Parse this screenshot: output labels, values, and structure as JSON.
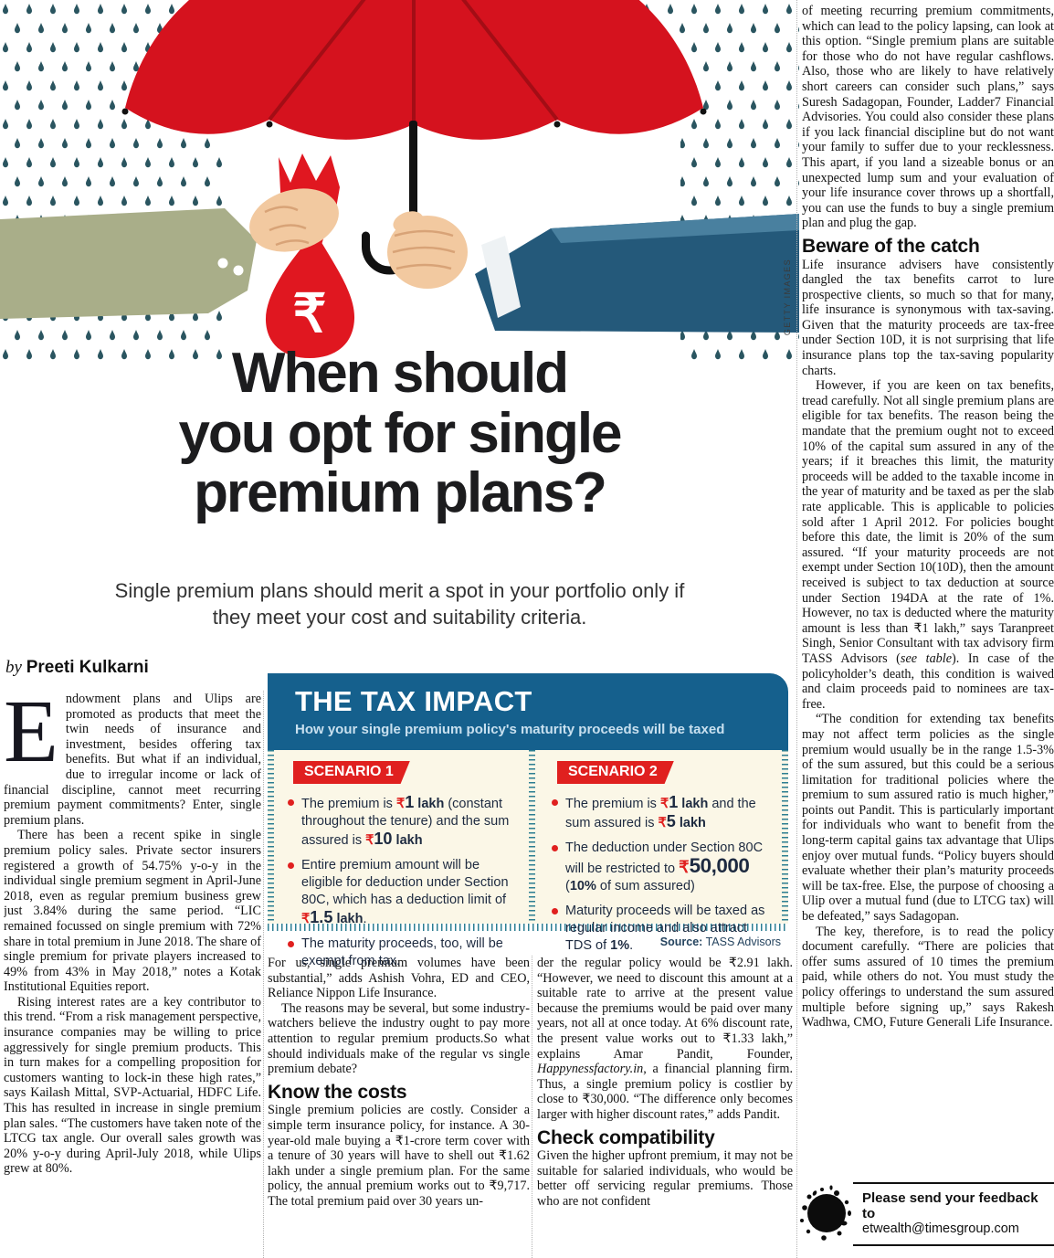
{
  "headline": {
    "lines": [
      "When should",
      "you opt for single",
      "premium plans?"
    ],
    "deck_lines": [
      "Single premium plans should merit a spot in your portfolio only if",
      "they meet your cost and suitability criteria."
    ]
  },
  "byline": {
    "prefix": "by",
    "author": "Preeti Kulkarni"
  },
  "illustration": {
    "credit": "GETTY IMAGES"
  },
  "columns": {
    "left": [
      {
        "t": "drop",
        "x": "Endowment plans and Ulips are promoted as products that meet the twin needs of insurance and investment, besides offering tax benefits. But what if an individual, due to irregular income or lack of financial discipline, cannot meet recurring premium payment commitments? Enter, single premium plans."
      },
      {
        "t": "ind",
        "x": "There has been a recent spike in single premium policy sales. Private sector insurers registered a growth of 54.75% y-o-y in the individual single premium segment in April-June 2018, even as regular premium business grew just 3.84% during the same period. “LIC remained focussed on single premium with 72% share in total premium in June 2018. The share of single premium for private players increased to 49% from 43% in May 2018,” notes a Kotak Institutional Equities report."
      },
      {
        "t": "ind",
        "x": "Rising interest rates are a key contributor to this trend. “From a risk management perspective, insurance companies may be willing to price aggressively for single premium products. This in turn makes for a compelling proposition for customers wanting to lock-in these high rates,” says Kailash Mittal, SVP-Actuarial, HDFC Life. This has resulted in increase in single premium plan sales. “The customers have taken note of the LTCG tax angle. Our overall sales growth was 20% y-o-y during April-July 2018, while Ulips grew at 80%."
      }
    ],
    "mid1": [
      {
        "t": "p",
        "x": "For us, single premium volumes have been substantial,” adds Ashish Vohra, ED and CEO, Reliance Nippon Life Insurance."
      },
      {
        "t": "ind",
        "x": "The reasons may be several, but some industry-watchers believe the industry ought to pay more attention to regular premium products.So what should individuals make of the regular vs single premium debate?"
      },
      {
        "t": "h2",
        "x": "Know the costs"
      },
      {
        "t": "p",
        "x": "Single premium policies are costly. Consider a simple term insurance policy, for instance. A 30-year-old male buying a ₹1-crore term cover with a tenure of 30 years will have to shell out ₹1.62 lakh under a single premium plan. For the same policy, the annual premium works out to ₹9,717. The total premium paid over 30 years un-"
      }
    ],
    "mid2": [
      {
        "t": "p",
        "x": "der the regular policy would be ₹2.91 lakh. “However, we need to discount this amount at a suitable rate to arrive at the present value because the premiums would be paid over many years, not all at once today. At 6% discount rate, the present value works out to ₹1.33 lakh,” explains Amar Pandit, Founder, _Happynessfactory.in_, a financial planning firm. Thus, a single premium policy is costlier by close to ₹30,000. “The difference only becomes larger with higher discount rates,” adds Pandit."
      },
      {
        "t": "h2",
        "x": "Check compatibility"
      },
      {
        "t": "p",
        "x": "Given the higher upfront premium, it may not be suitable for salaried individuals, who would be better off servicing regular premiums. Those who are not confident"
      }
    ],
    "right": [
      {
        "t": "p",
        "x": "of meeting recurring premium commitments, which can lead to the policy lapsing, can look at this option. “Single premium plans are suitable for those who do not have regular cashflows. Also, those who are likely to have relatively short careers can consider such plans,” says Suresh Sadagopan, Founder, Ladder7 Financial Advisories. You could also consider these plans if you lack financial discipline but do not want your family to suffer due to your recklessness. This apart, if you land a sizeable bonus or an unexpected lump sum and your evaluation of your life insurance cover throws up a shortfall, you can use the funds to buy a single premium plan and plug the gap."
      },
      {
        "t": "h2",
        "x": "Beware of the catch"
      },
      {
        "t": "p",
        "x": "Life insurance advisers have consistently dangled the tax benefits carrot to lure prospective clients, so much so that for many, life insurance is synonymous with tax-saving. Given that the maturity proceeds are tax-free under Section 10D, it is not surprising that life insurance plans top the tax-saving popularity charts."
      },
      {
        "t": "ind",
        "x": "However, if you are keen on tax benefits, tread carefully. Not all single premium plans are eligible for tax benefits.  The reason being the mandate that the premium ought not to exceed 10% of the capital sum assured in any of the years; if it breaches this limit, the maturity proceeds will be added to the taxable income in the year of maturity and be taxed as per the slab rate applicable. This is applicable to policies sold after 1 April 2012.  For policies bought before this date, the limit is 20% of the sum assured. “If your maturity proceeds are not exempt under Section 10(10D), then the amount received is subject to tax deduction at source under Section 194DA at the rate of 1%. However, no tax is deducted where the maturity amount is less than ₹1 lakh,” says Taranpreet Singh, Senior Consultant with tax advisory firm TASS Advisors (_see table_). In case of the policyholder’s death, this condition is waived and claim proceeds paid to nominees are tax-free."
      },
      {
        "t": "ind",
        "x": "“The condition for extending tax benefits may not affect term policies as the single premium would usually be in the range 1.5-3% of the sum assured, but this could be a serious limitation for traditional policies where the premium to sum assured ratio is much higher,” points out Pandit. This is particularly important for individuals who want to benefit from the long-term capital gains tax advantage that Ulips enjoy over mutual funds. “Policy buyers should evaluate whether their plan’s maturity proceeds will be tax-free. Else, the purpose of choosing a Ulip over a mutual fund (due to LTCG tax) will be defeated,” says Sadagopan."
      },
      {
        "t": "ind",
        "x": "The key, therefore, is to read the policy document carefully. “There are policies that offer sums assured of 10 times the premium paid, while others do not. You must study the policy offerings to understand the sum assured multiple before signing up,” says Rakesh Wadhwa, CMO, Future Generali Life Insurance."
      }
    ]
  },
  "tax_box": {
    "title": "THE TAX IMPACT",
    "subtitle": "How your single premium policy's maturity proceeds will be taxed",
    "source_label": "Source:",
    "source_value": "TASS Advisors",
    "scenarios": [
      {
        "label": "SCENARIO 1",
        "bullets": [
          [
            {
              "t": "The premium is ",
              "s": "n"
            },
            {
              "t": "₹",
              "s": "rup"
            },
            {
              "t": "1",
              "s": "num"
            },
            {
              "t": " lakh",
              "s": "b"
            },
            {
              "t": " (constant throughout the tenure) and the sum assured is ",
              "s": "n"
            },
            {
              "t": "₹",
              "s": "rup"
            },
            {
              "t": "10",
              "s": "num"
            },
            {
              "t": " lakh",
              "s": "b"
            }
          ],
          [
            {
              "t": "Entire premium amount will be eligible for deduction under Section 80C, which has a deduction limit of ",
              "s": "n"
            },
            {
              "t": "₹",
              "s": "rup"
            },
            {
              "t": "1.5",
              "s": "num"
            },
            {
              "t": " lakh",
              "s": "b"
            },
            {
              "t": ".",
              "s": "n"
            }
          ],
          [
            {
              "t": "The maturity proceeds, too, will be exempt from tax.",
              "s": "n"
            }
          ]
        ]
      },
      {
        "label": "SCENARIO 2",
        "bullets": [
          [
            {
              "t": "The premium is ",
              "s": "n"
            },
            {
              "t": "₹",
              "s": "rup"
            },
            {
              "t": "1",
              "s": "num"
            },
            {
              "t": " lakh",
              "s": "b"
            },
            {
              "t": " and the sum assured is ",
              "s": "n"
            },
            {
              "t": "₹",
              "s": "rup"
            },
            {
              "t": "5",
              "s": "num"
            },
            {
              "t": " lakh",
              "s": "b"
            }
          ],
          [
            {
              "t": "The deduction under Section 80C will be restricted to ",
              "s": "n"
            },
            {
              "t": "₹",
              "s": "rupbig"
            },
            {
              "t": "50,000",
              "s": "bignum"
            },
            {
              "t": " (",
              "s": "n"
            },
            {
              "t": "10%",
              "s": "b"
            },
            {
              "t": " of sum assured)",
              "s": "n"
            }
          ],
          [
            {
              "t": "Maturity proceeds will be taxed as regular income and also attract TDS of ",
              "s": "n"
            },
            {
              "t": "1%",
              "s": "b"
            },
            {
              "t": ".",
              "s": "n"
            }
          ]
        ]
      }
    ]
  },
  "feedback": {
    "line1": "Please send your feedback to",
    "line2": "etwealth@timesgroup.com"
  },
  "colors": {
    "header_blue": "#15608d",
    "badge_red": "#e0201f",
    "panel_cream": "#fbf7e7",
    "ticker_teal": "#2c7e92",
    "umbrella_red": "#d5121e",
    "bag_red": "#e01720",
    "rain_teal": "#2a5560",
    "sleeve_olive": "#a9ae89",
    "sleeve_blue": "#24597a",
    "skin": "#f2c9a0"
  }
}
